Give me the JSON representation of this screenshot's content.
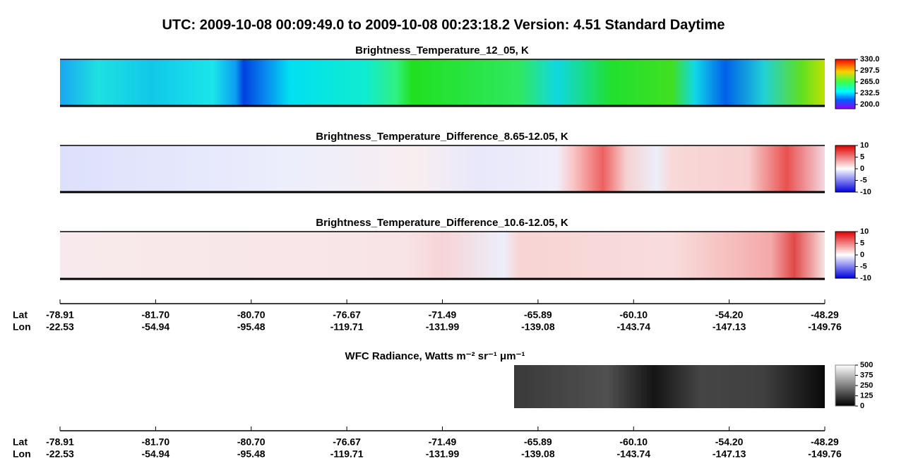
{
  "title": "UTC:  2009-10-08   00:09:49.0  to  2009-10-08   00:23:18.2    Version: 4.51  Standard Daytime",
  "panels": [
    {
      "title": "Brightness_Temperature_12_05, K",
      "colorbar": [
        "330.0",
        "297.5",
        "265.0",
        "232.5",
        "200.0"
      ]
    },
    {
      "title": "Brightness_Temperature_Difference_8.65-12.05, K",
      "colorbar": [
        "10",
        "5",
        "0",
        "-5",
        "-10"
      ]
    },
    {
      "title": "Brightness_Temperature_Difference_10.6-12.05, K",
      "colorbar": [
        "10",
        "5",
        "0",
        "-5",
        "-10"
      ]
    }
  ],
  "wfc": {
    "title": "WFC Radiance, Watts m⁻² sr⁻¹ μm⁻¹",
    "colorbar": [
      "500",
      "375",
      "250",
      "125",
      "0"
    ]
  },
  "axes": [
    {
      "lat_label": "Lat",
      "lon_label": "Lon",
      "lat": [
        "-78.91",
        "-81.70",
        "-80.70",
        "-76.67",
        "-71.49",
        "-65.89",
        "-60.10",
        "-54.20",
        "-48.29"
      ],
      "lon": [
        "-22.53",
        "-54.94",
        "-95.48",
        "-119.71",
        "-131.99",
        "-139.08",
        "-143.74",
        "-147.13",
        "-149.76"
      ]
    },
    {
      "lat_label": "Lat",
      "lon_label": "Lon",
      "lat": [
        "-78.91",
        "-81.70",
        "-80.70",
        "-76.67",
        "-71.49",
        "-65.89",
        "-60.10",
        "-54.20",
        "-48.29"
      ],
      "lon": [
        "-22.53",
        "-54.94",
        "-95.48",
        "-119.71",
        "-131.99",
        "-139.08",
        "-143.74",
        "-147.13",
        "-149.76"
      ]
    }
  ]
}
